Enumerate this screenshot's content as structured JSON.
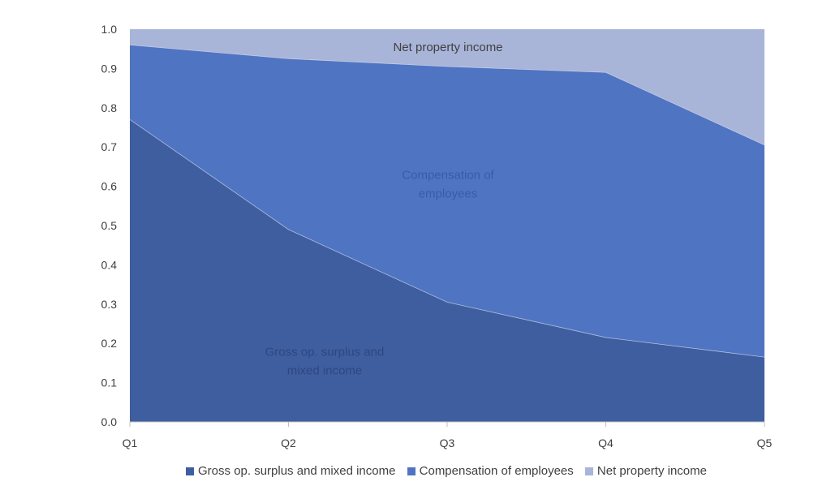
{
  "chart_data": {
    "type": "area",
    "stacked": true,
    "categories": [
      "Q1",
      "Q2",
      "Q3",
      "Q4",
      "Q5"
    ],
    "ylim": [
      0,
      1.0
    ],
    "yticks": [
      "0.0",
      "0.1",
      "0.2",
      "0.3",
      "0.4",
      "0.5",
      "0.6",
      "0.7",
      "0.8",
      "0.9",
      "1.0"
    ],
    "grid": false,
    "legend_position": "bottom",
    "series": [
      {
        "name": "Gross op. surplus and mixed income",
        "values": [
          0.77,
          0.49,
          0.305,
          0.215,
          0.165
        ],
        "color": "#3F5E9F",
        "label_lines": [
          "Gross op. surplus and",
          "mixed income"
        ],
        "label_color": "#2F4680"
      },
      {
        "name": "Compensation of employees",
        "values": [
          0.19,
          0.435,
          0.6,
          0.675,
          0.54
        ],
        "color": "#4F74C2",
        "label_lines": [
          "Compensation of",
          "employees"
        ],
        "label_color": "#3A5CA8"
      },
      {
        "name": "Net property income",
        "values": [
          0.04,
          0.075,
          0.095,
          0.11,
          0.295
        ],
        "color": "#A9B4D9",
        "label_lines": [
          "Net property income"
        ],
        "label_color": "#404040"
      }
    ]
  }
}
